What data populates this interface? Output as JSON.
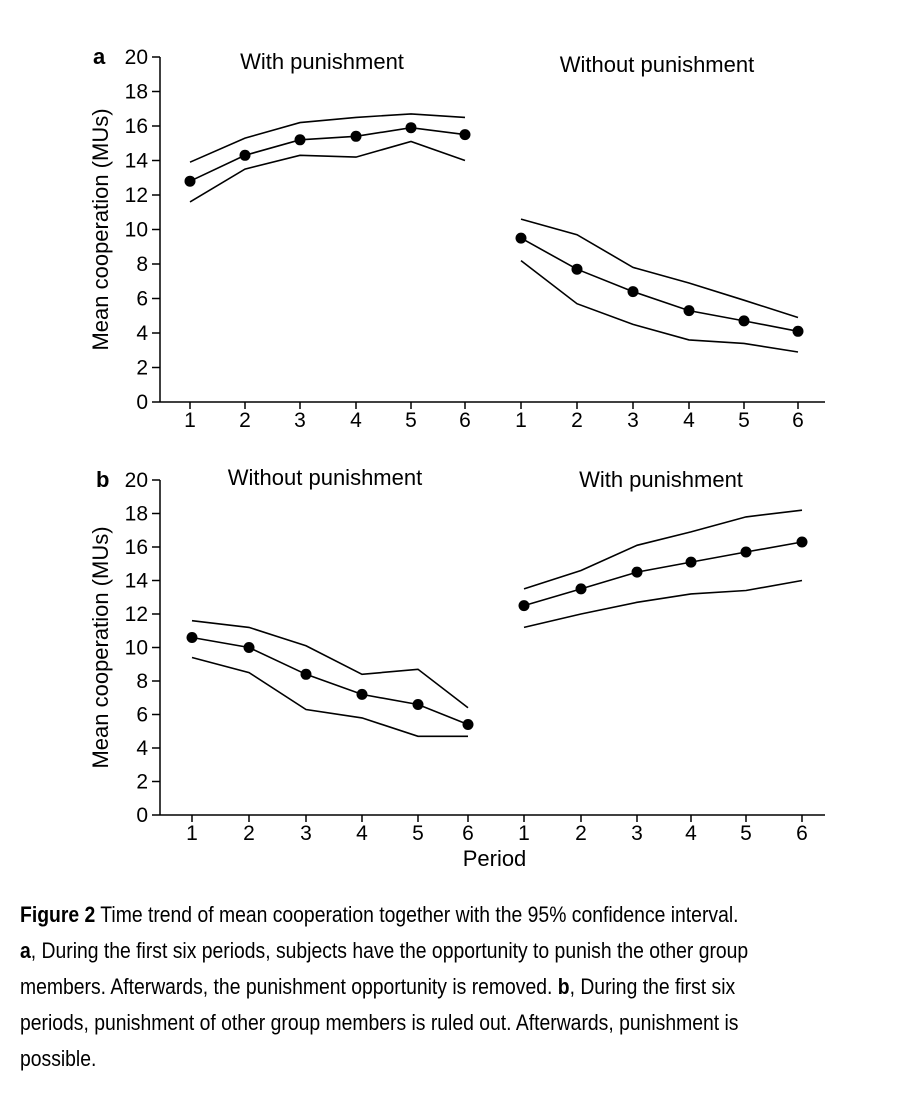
{
  "chart_data": [
    {
      "panel": "a",
      "type": "line",
      "ylabel": "Mean cooperation (MUs)",
      "ylim": [
        0,
        20
      ],
      "yticks": [
        "0",
        "2",
        "4",
        "6",
        "8",
        "10",
        "12",
        "14",
        "16",
        "18",
        "20"
      ],
      "conditions": [
        {
          "label": "With punishment",
          "x": [
            "1",
            "2",
            "3",
            "4",
            "5",
            "6"
          ],
          "mean": [
            12.8,
            14.3,
            15.2,
            15.4,
            15.9,
            15.5
          ],
          "upper_ci": [
            13.9,
            15.3,
            16.2,
            16.5,
            16.7,
            16.5
          ],
          "lower_ci": [
            11.6,
            13.5,
            14.3,
            14.2,
            15.1,
            14.0
          ]
        },
        {
          "label": "Without punishment",
          "x": [
            "1",
            "2",
            "3",
            "4",
            "5",
            "6"
          ],
          "mean": [
            9.5,
            7.7,
            6.4,
            5.3,
            4.7,
            4.1
          ],
          "upper_ci": [
            10.6,
            9.7,
            7.8,
            6.9,
            5.9,
            4.9
          ],
          "lower_ci": [
            8.2,
            5.7,
            4.5,
            3.6,
            3.4,
            2.9
          ]
        }
      ]
    },
    {
      "panel": "b",
      "type": "line",
      "xlabel": "Period",
      "ylabel": "Mean cooperation (MUs)",
      "ylim": [
        0,
        20
      ],
      "yticks": [
        "0",
        "2",
        "4",
        "6",
        "8",
        "10",
        "12",
        "14",
        "16",
        "18",
        "20"
      ],
      "conditions": [
        {
          "label": "Without punishment",
          "x": [
            "1",
            "2",
            "3",
            "4",
            "5",
            "6"
          ],
          "mean": [
            10.6,
            10.0,
            8.4,
            7.2,
            6.6,
            5.4
          ],
          "upper_ci": [
            11.6,
            11.2,
            10.1,
            8.4,
            8.7,
            6.4
          ],
          "lower_ci": [
            9.4,
            8.5,
            6.3,
            5.8,
            4.7,
            4.7
          ]
        },
        {
          "label": "With punishment",
          "x": [
            "1",
            "2",
            "3",
            "4",
            "5",
            "6"
          ],
          "mean": [
            12.5,
            13.5,
            14.5,
            15.1,
            15.7,
            16.3
          ],
          "upper_ci": [
            13.5,
            14.6,
            16.1,
            16.9,
            17.8,
            18.2
          ],
          "lower_ci": [
            11.2,
            12.0,
            12.7,
            13.2,
            13.4,
            14.0
          ]
        }
      ]
    }
  ],
  "caption": {
    "figure_label": "Figure 2",
    "sentence_1": " Time trend of mean cooperation together with the 95% confidence interval.",
    "a_label": "a",
    "a_text_1": ", During the first six periods, subjects have the opportunity to punish the other group",
    "a_text_2": "members. Afterwards, the punishment opportunity is removed. ",
    "b_label": "b",
    "b_text_1": ", During the first six",
    "b_text_2": "periods, punishment of other group members is ruled out. Afterwards, punishment is",
    "b_text_3": "possible."
  }
}
